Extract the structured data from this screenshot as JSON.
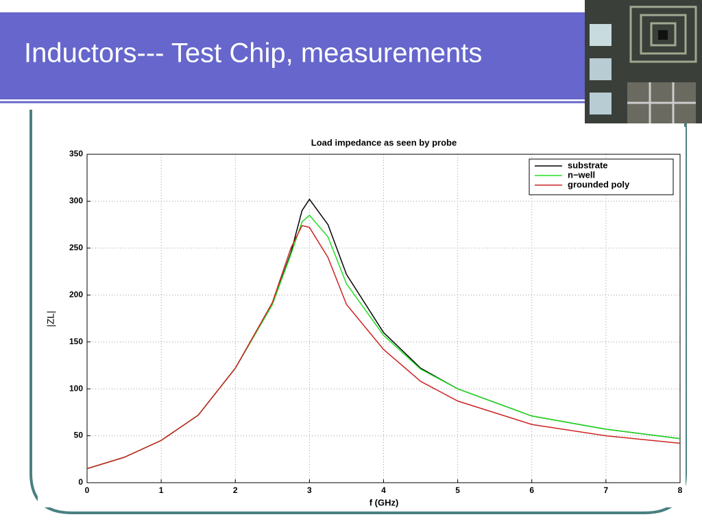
{
  "slide": {
    "title": "Inductors--- Test Chip, measurements"
  },
  "chart_data": {
    "type": "line",
    "title": "Load impedance as seen by probe",
    "xlabel": "f (GHz)",
    "ylabel": "|ZL|",
    "x": [
      0,
      0.5,
      1,
      1.5,
      2,
      2.5,
      2.75,
      2.9,
      3,
      3.25,
      3.5,
      4,
      4.5,
      5,
      6,
      7,
      8
    ],
    "series": [
      {
        "name": "substrate",
        "color": "#000000",
        "values": [
          15,
          27,
          45,
          72,
          122,
          190,
          245,
          290,
          302,
          275,
          222,
          160,
          122,
          100,
          71,
          57,
          47
        ]
      },
      {
        "name": "n−well",
        "color": "#22dd22",
        "values": [
          15,
          27,
          45,
          72,
          122,
          190,
          243,
          278,
          285,
          262,
          212,
          157,
          121,
          100,
          71,
          57,
          47
        ]
      },
      {
        "name": "grounded poly",
        "color": "#cc2222",
        "values": [
          15,
          27,
          45,
          72,
          122,
          192,
          250,
          274,
          272,
          240,
          190,
          142,
          108,
          87,
          62,
          50,
          42
        ]
      }
    ],
    "xlim": [
      0,
      8
    ],
    "xticks": [
      0,
      1,
      2,
      3,
      4,
      5,
      6,
      7,
      8
    ],
    "ylim": [
      0,
      350
    ],
    "yticks": [
      0,
      50,
      100,
      150,
      200,
      250,
      300,
      350
    ],
    "grid": true,
    "legend": "upper right"
  }
}
